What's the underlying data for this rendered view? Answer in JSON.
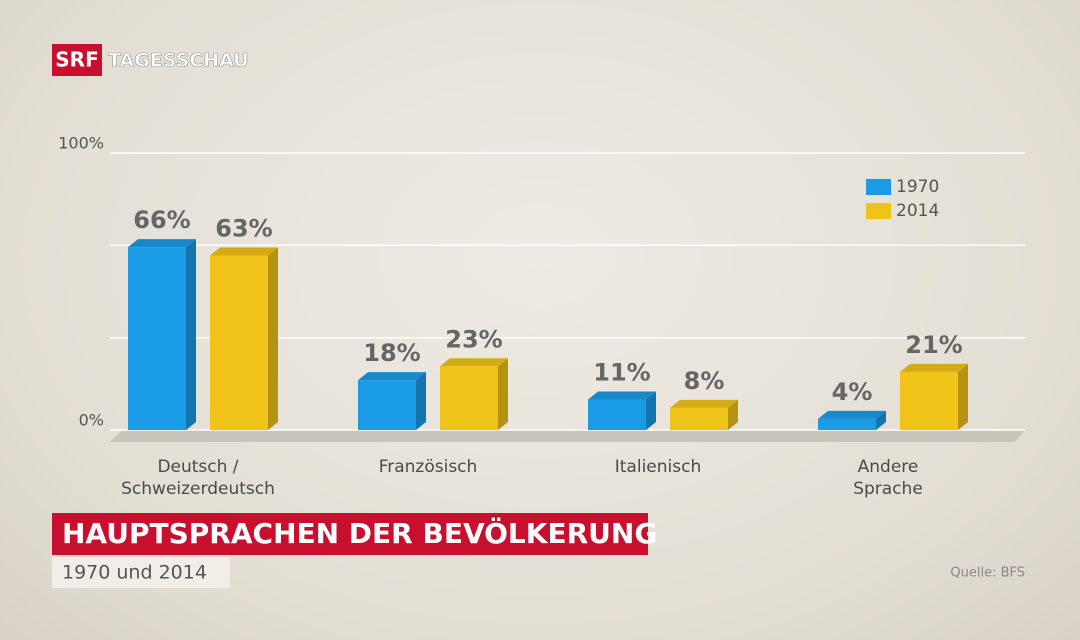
{
  "logo": "SRF",
  "program": "TAGESSCHAU",
  "chart_data": {
    "type": "bar",
    "title": "HAUPTSPRACHEN DER BEVÖLKERUNG",
    "subtitle": "1970 und 2014",
    "source": "Quelle: BFS",
    "categories": [
      "Deutsch /\nSchweizerdeutsch",
      "Französisch",
      "Italienisch",
      "Andere\nSprache"
    ],
    "series": [
      {
        "name": "1970",
        "color": "#1a9be6",
        "values": [
          66,
          18,
          11,
          4
        ],
        "value_labels": [
          "66%",
          "18%",
          "11%",
          "4%"
        ]
      },
      {
        "name": "2014",
        "color": "#f0c318",
        "values": [
          63,
          23,
          8,
          21
        ],
        "value_labels": [
          "63%",
          "23%",
          "8%",
          "21%"
        ]
      }
    ],
    "ylim": [
      0,
      100
    ],
    "yticks": [
      {
        "value": 0,
        "label": "0%"
      },
      {
        "value": 33.3,
        "label": null
      },
      {
        "value": 66.7,
        "label": null
      },
      {
        "value": 100,
        "label": "100%"
      }
    ],
    "grid": true,
    "legend": "top-right"
  }
}
